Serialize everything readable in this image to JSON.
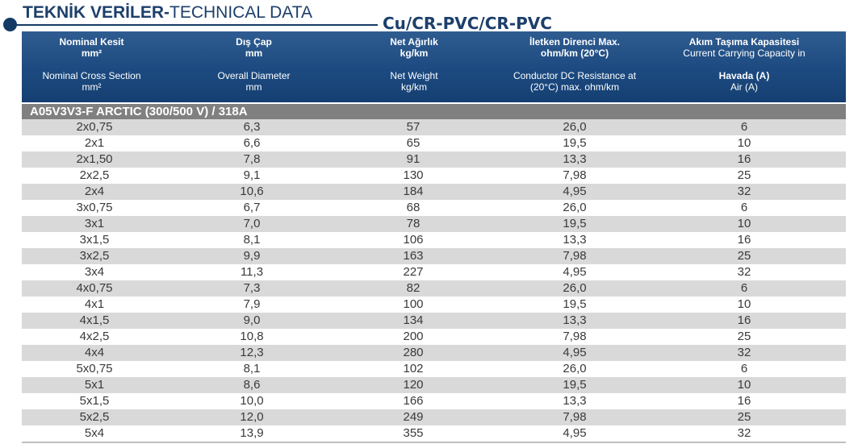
{
  "title": {
    "bold": "TEKNİK VERİLER-",
    "thin": "TECHNICAL DATA"
  },
  "subtitle": "Cu/CR-PVC/CR-PVC",
  "columns": [
    {
      "tr": "Nominal Kesit",
      "tr_unit": "mm²",
      "en": "Nominal Cross Section",
      "en_unit": "mm²"
    },
    {
      "tr": "Dış Çap",
      "tr_unit": "mm",
      "en": "Overall Diameter",
      "en_unit": "mm"
    },
    {
      "tr": "Net Ağırlık",
      "tr_unit": "kg/km",
      "en": "Net Weight",
      "en_unit": "kg/km"
    },
    {
      "tr": "İletken Direnci Max.",
      "tr_unit": "ohm/km (20°C)",
      "en": "Conductor DC Resistance at",
      "en_unit": "(20°C) max. ohm/km"
    },
    {
      "tr": "Akım Taşıma Kapasitesi",
      "tr_unit": "Current Carrying Capacity in",
      "en": "Havada (A)",
      "en_unit": "Air (A)"
    }
  ],
  "group_label": "A05V3V3-F ARCTIC (300/500 V) / 318A",
  "rows": [
    [
      "2x0,75",
      "6,3",
      "57",
      "26,0",
      "6"
    ],
    [
      "2x1",
      "6,6",
      "65",
      "19,5",
      "10"
    ],
    [
      "2x1,50",
      "7,8",
      "91",
      "13,3",
      "16"
    ],
    [
      "2x2,5",
      "9,1",
      "130",
      "7,98",
      "25"
    ],
    [
      "2x4",
      "10,6",
      "184",
      "4,95",
      "32"
    ],
    [
      "3x0,75",
      "6,7",
      "68",
      "26,0",
      "6"
    ],
    [
      "3x1",
      "7,0",
      "78",
      "19,5",
      "10"
    ],
    [
      "3x1,5",
      "8,1",
      "106",
      "13,3",
      "16"
    ],
    [
      "3x2,5",
      "9,9",
      "163",
      "7,98",
      "25"
    ],
    [
      "3x4",
      "11,3",
      "227",
      "4,95",
      "32"
    ],
    [
      "4x0,75",
      "7,3",
      "82",
      "26,0",
      "6"
    ],
    [
      "4x1",
      "7,9",
      "100",
      "19,5",
      "10"
    ],
    [
      "4x1,5",
      "9,0",
      "134",
      "13,3",
      "16"
    ],
    [
      "4x2,5",
      "10,8",
      "200",
      "7,98",
      "25"
    ],
    [
      "4x4",
      "12,3",
      "280",
      "4,95",
      "32"
    ],
    [
      "5x0,75",
      "8,1",
      "102",
      "26,0",
      "6"
    ],
    [
      "5x1",
      "8,6",
      "120",
      "19,5",
      "10"
    ],
    [
      "5x1,5",
      "10,0",
      "166",
      "13,3",
      "16"
    ],
    [
      "5x2,5",
      "12,0",
      "249",
      "7,98",
      "25"
    ],
    [
      "5x4",
      "13,9",
      "355",
      "4,95",
      "32"
    ]
  ],
  "colors": {
    "header": "#1c4a80",
    "title": "#1d3f6b",
    "group": "#808080",
    "stripe": "#d9d9d9"
  }
}
